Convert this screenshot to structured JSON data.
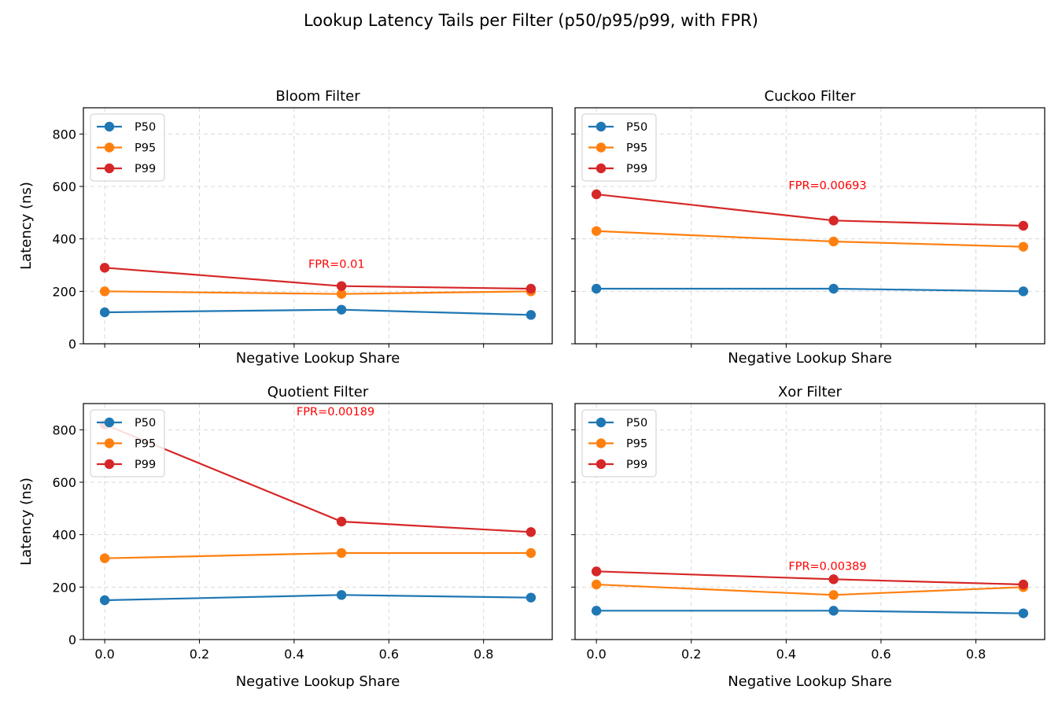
{
  "title": "Lookup Latency Tails per Filter (p50/p95/p99, with FPR)",
  "colors": {
    "p50": "#1f77b4",
    "p95": "#ff7f0e",
    "p99": "#d62728",
    "annotation": "#ff0000",
    "grid": "#cccccc"
  },
  "chart_data": [
    {
      "type": "line",
      "title": "Bloom Filter",
      "xlabel": "Negative Lookup Share",
      "ylabel": "Latency (ns)",
      "x": [
        0.0,
        0.5,
        0.9
      ],
      "xlim": [
        -0.045,
        0.945
      ],
      "ylim": [
        0,
        900
      ],
      "xticks": [
        0.0,
        0.2,
        0.4,
        0.6,
        0.8
      ],
      "xtick_labels": [],
      "yticks": [
        0,
        200,
        400,
        600,
        800
      ],
      "ytick_labels": [
        "0",
        "200",
        "400",
        "600",
        "800"
      ],
      "grid": true,
      "legend": "upper left",
      "series": [
        {
          "name": "P50",
          "values": [
            120,
            130,
            110
          ]
        },
        {
          "name": "P95",
          "values": [
            200,
            190,
            200
          ]
        },
        {
          "name": "P99",
          "values": [
            290,
            220,
            210
          ]
        }
      ],
      "annotation": {
        "text": "FPR=0.01",
        "x": 0.43,
        "y": 305
      }
    },
    {
      "type": "line",
      "title": "Cuckoo Filter",
      "xlabel": "Negative Lookup Share",
      "ylabel": "",
      "x": [
        0.0,
        0.5,
        0.9
      ],
      "xlim": [
        -0.045,
        0.945
      ],
      "ylim": [
        0,
        900
      ],
      "xticks": [
        0.0,
        0.2,
        0.4,
        0.6,
        0.8
      ],
      "xtick_labels": [],
      "yticks": [
        0,
        200,
        400,
        600,
        800
      ],
      "ytick_labels": [],
      "grid": true,
      "legend": "upper left",
      "series": [
        {
          "name": "P50",
          "values": [
            210,
            210,
            200
          ]
        },
        {
          "name": "P95",
          "values": [
            430,
            390,
            370
          ]
        },
        {
          "name": "P99",
          "values": [
            570,
            470,
            450
          ]
        }
      ],
      "annotation": {
        "text": "FPR=0.00693",
        "x": 0.405,
        "y": 605
      }
    },
    {
      "type": "line",
      "title": "Quotient Filter",
      "xlabel": "Negative Lookup Share",
      "ylabel": "Latency (ns)",
      "x": [
        0.0,
        0.5,
        0.9
      ],
      "xlim": [
        -0.045,
        0.945
      ],
      "ylim": [
        0,
        900
      ],
      "xticks": [
        0.0,
        0.2,
        0.4,
        0.6,
        0.8
      ],
      "xtick_labels": [
        "0.0",
        "0.2",
        "0.4",
        "0.6",
        "0.8"
      ],
      "yticks": [
        0,
        200,
        400,
        600,
        800
      ],
      "ytick_labels": [
        "0",
        "200",
        "400",
        "600",
        "800"
      ],
      "grid": true,
      "legend": "upper left",
      "series": [
        {
          "name": "P50",
          "values": [
            150,
            170,
            160
          ]
        },
        {
          "name": "P95",
          "values": [
            310,
            330,
            330
          ]
        },
        {
          "name": "P99",
          "values": [
            820,
            450,
            410
          ]
        }
      ],
      "annotation": {
        "text": "FPR=0.00189",
        "x": 0.405,
        "y": 870
      }
    },
    {
      "type": "line",
      "title": "Xor Filter",
      "xlabel": "Negative Lookup Share",
      "ylabel": "",
      "x": [
        0.0,
        0.5,
        0.9
      ],
      "xlim": [
        -0.045,
        0.945
      ],
      "ylim": [
        0,
        900
      ],
      "xticks": [
        0.0,
        0.2,
        0.4,
        0.6,
        0.8
      ],
      "xtick_labels": [
        "0.0",
        "0.2",
        "0.4",
        "0.6",
        "0.8"
      ],
      "yticks": [
        0,
        200,
        400,
        600,
        800
      ],
      "ytick_labels": [],
      "grid": true,
      "legend": "upper left",
      "series": [
        {
          "name": "P50",
          "values": [
            110,
            110,
            100
          ]
        },
        {
          "name": "P95",
          "values": [
            210,
            170,
            200
          ]
        },
        {
          "name": "P99",
          "values": [
            260,
            230,
            210
          ]
        }
      ],
      "annotation": {
        "text": "FPR=0.00389",
        "x": 0.405,
        "y": 280
      }
    }
  ]
}
